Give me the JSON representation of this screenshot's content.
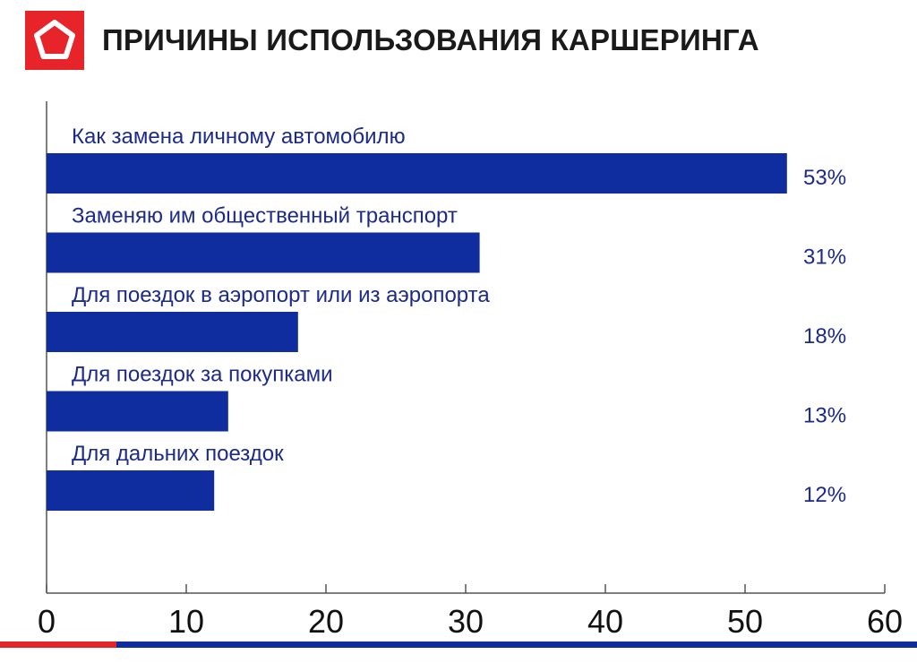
{
  "header": {
    "title": "ПРИЧИНЫ ИСПОЛЬЗОВАНИЯ КАРШЕРИНГА",
    "logo_icon": "pentagon-logo-icon"
  },
  "colors": {
    "bar": "#0f2d9e",
    "label": "#1c2a8c",
    "accent": "#e8242b"
  },
  "chart_data": {
    "type": "bar",
    "orientation": "horizontal",
    "title": "ПРИЧИНЫ ИСПОЛЬЗОВАНИЯ КАРШЕРИНГА",
    "categories": [
      "Как замена личному автомобилю",
      "Заменяю им общественный транспорт",
      "Для поездок в аэропорт или из аэропорта",
      "Для поездок за покупками",
      "Для дальних поездок"
    ],
    "values": [
      53,
      31,
      18,
      13,
      12
    ],
    "value_labels": [
      "53%",
      "31%",
      "18%",
      "13%",
      "12%"
    ],
    "xlim": [
      0,
      60
    ],
    "xticks": [
      0,
      10,
      20,
      30,
      40,
      50,
      60
    ],
    "xtick_labels": [
      "0",
      "10",
      "20",
      "30",
      "40",
      "50",
      "60"
    ],
    "grid": false,
    "legend": "none"
  }
}
